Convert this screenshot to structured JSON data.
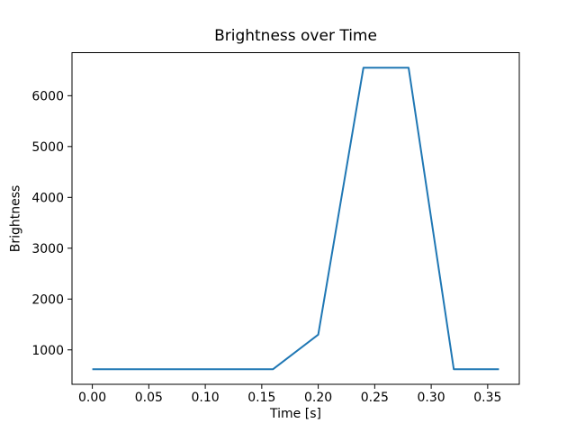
{
  "figure": {
    "background": "#ffffff",
    "text_color": "#000000",
    "spine_color": "#000000"
  },
  "chart_data": {
    "type": "line",
    "title": "Brightness over Time",
    "xlabel": "Time [s]",
    "ylabel": "Brightness",
    "x": [
      0.0,
      0.04,
      0.08,
      0.12,
      0.16,
      0.2,
      0.24,
      0.28,
      0.32,
      0.36
    ],
    "y": [
      620,
      620,
      620,
      620,
      620,
      1300,
      6550,
      6550,
      620,
      620
    ],
    "line_color": "#1f77b4",
    "line_width": 2,
    "xlim": [
      -0.018,
      0.378
    ],
    "ylim": [
      323,
      6847
    ],
    "xticks": [
      0.0,
      0.05,
      0.1,
      0.15,
      0.2,
      0.25,
      0.3,
      0.35
    ],
    "xtick_labels": [
      "0.00",
      "0.05",
      "0.10",
      "0.15",
      "0.20",
      "0.25",
      "0.30",
      "0.35"
    ],
    "yticks": [
      1000,
      2000,
      3000,
      4000,
      5000,
      6000
    ],
    "ytick_labels": [
      "1000",
      "2000",
      "3000",
      "4000",
      "5000",
      "6000"
    ],
    "grid": false,
    "legend": null
  }
}
